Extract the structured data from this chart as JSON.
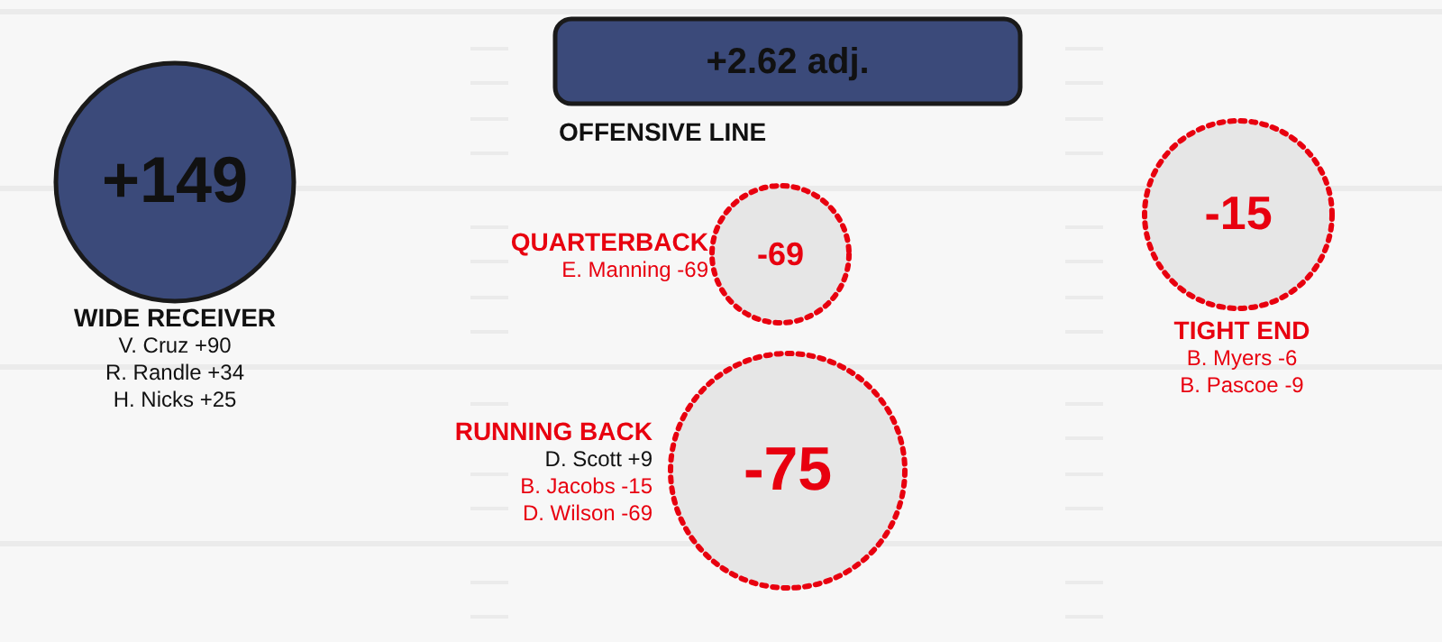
{
  "chart_data": {
    "type": "other",
    "categories": [
      "WIDE RECEIVER",
      "OFFENSIVE LINE",
      "QUARTERBACK",
      "RUNNING BACK",
      "TIGHT END"
    ],
    "values": [
      149,
      2.62,
      -69,
      -75,
      -15
    ],
    "value_labels": [
      "+149",
      "+2.62 adj.",
      "-69",
      "-75",
      "-15"
    ],
    "colors": [
      "#3b4a7a",
      "#3b4a7a",
      "#e6e6e6",
      "#e6e6e6",
      "#e6e6e6"
    ],
    "annotations": [
      {
        "text": "V. Cruz +90",
        "x": "WIDE RECEIVER"
      },
      {
        "text": "R. Randle +34",
        "x": "WIDE RECEIVER"
      },
      {
        "text": "H. Nicks +25",
        "x": "WIDE RECEIVER"
      },
      {
        "text": "E. Manning -69",
        "x": "QUARTERBACK"
      },
      {
        "text": "D. Scott +9",
        "x": "RUNNING BACK"
      },
      {
        "text": "B. Jacobs -15",
        "x": "RUNNING BACK"
      },
      {
        "text": "D. Wilson -69",
        "x": "RUNNING BACK"
      },
      {
        "text": "B. Myers -6",
        "x": "TIGHT END"
      },
      {
        "text": "B. Pascoe -9",
        "x": "TIGHT END"
      }
    ]
  }
}
